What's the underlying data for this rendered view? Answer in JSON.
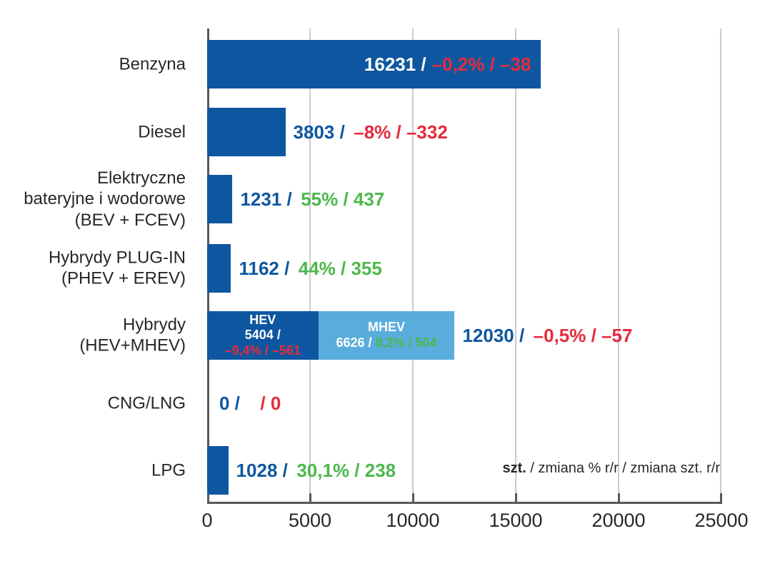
{
  "chart_data": {
    "type": "bar",
    "orientation": "horizontal",
    "categories": [
      "Benzyna",
      "Diesel",
      "Elektryczne bateryjne i wodorowe (BEV + FCEV)",
      "Hybrydy PLUG-IN (PHEV + EREV)",
      "Hybrydy (HEV+MHEV)",
      "CNG/LNG",
      "LPG"
    ],
    "values": [
      16231,
      3803,
      1231,
      1162,
      12030,
      0,
      1028
    ],
    "change_pct": [
      -0.2,
      -8,
      55,
      44,
      -0.5,
      null,
      30.1
    ],
    "change_abs": [
      -38,
      -332,
      437,
      355,
      -57,
      0,
      238
    ],
    "stacked": {
      "category": "Hybrydy (HEV+MHEV)",
      "segments": [
        {
          "name": "HEV",
          "value": 5404,
          "change_pct": -9.4,
          "change_abs": -561
        },
        {
          "name": "MHEV",
          "value": 6626,
          "change_pct": 8.2,
          "change_abs": 504
        }
      ]
    },
    "xlim": [
      0,
      25000
    ],
    "xticks": [
      0,
      5000,
      10000,
      15000,
      20000,
      25000
    ],
    "grid": true,
    "legend_position": "bottom-right",
    "note": "szt. / zmiana % r/r / zmiana szt. r/r"
  },
  "rows": [
    {
      "label": "Benzyna",
      "value": "16231 /",
      "change": "–0,2% / –38"
    },
    {
      "label": "Diesel",
      "value": "3803 /",
      "change": "–8% / –332"
    },
    {
      "label": "Elektryczne\nbateryjne i wodorowe\n(BEV + FCEV)",
      "value": "1231 /",
      "change": "55% / 437"
    },
    {
      "label": "Hybrydy PLUG-IN\n(PHEV + EREV)",
      "value": "1162 /",
      "change": "44% / 355"
    },
    {
      "label": "Hybrydy\n(HEV+MHEV)",
      "value": "12030 /",
      "change": "–0,5% / –57",
      "hev": {
        "name": "HEV",
        "value": "5404 /",
        "change": "–9,4% / –561"
      },
      "mhev": {
        "name": "MHEV",
        "value": "6626 /",
        "change": "8,2% / 504"
      }
    },
    {
      "label": "CNG/LNG",
      "value": "0 /",
      "change": "/ 0"
    },
    {
      "label": "LPG",
      "value": "1028 /",
      "change": "30,1% / 238"
    }
  ],
  "axis": {
    "ticks": [
      "0",
      "5000",
      "10000",
      "15000",
      "20000",
      "25000"
    ]
  },
  "legend": {
    "unit_bold": "szt.",
    "rest": " / zmiana % r/r / zmiana szt. r/r"
  },
  "colors": {
    "bar_dark_blue": "#0e57a0",
    "bar_light_blue": "#59addd",
    "negative_red": "#e42b3c",
    "positive_green": "#4cb84c",
    "text_dark": "#29262b",
    "grid_light": "#cbcbcb",
    "axis_dark": "#58595b"
  }
}
